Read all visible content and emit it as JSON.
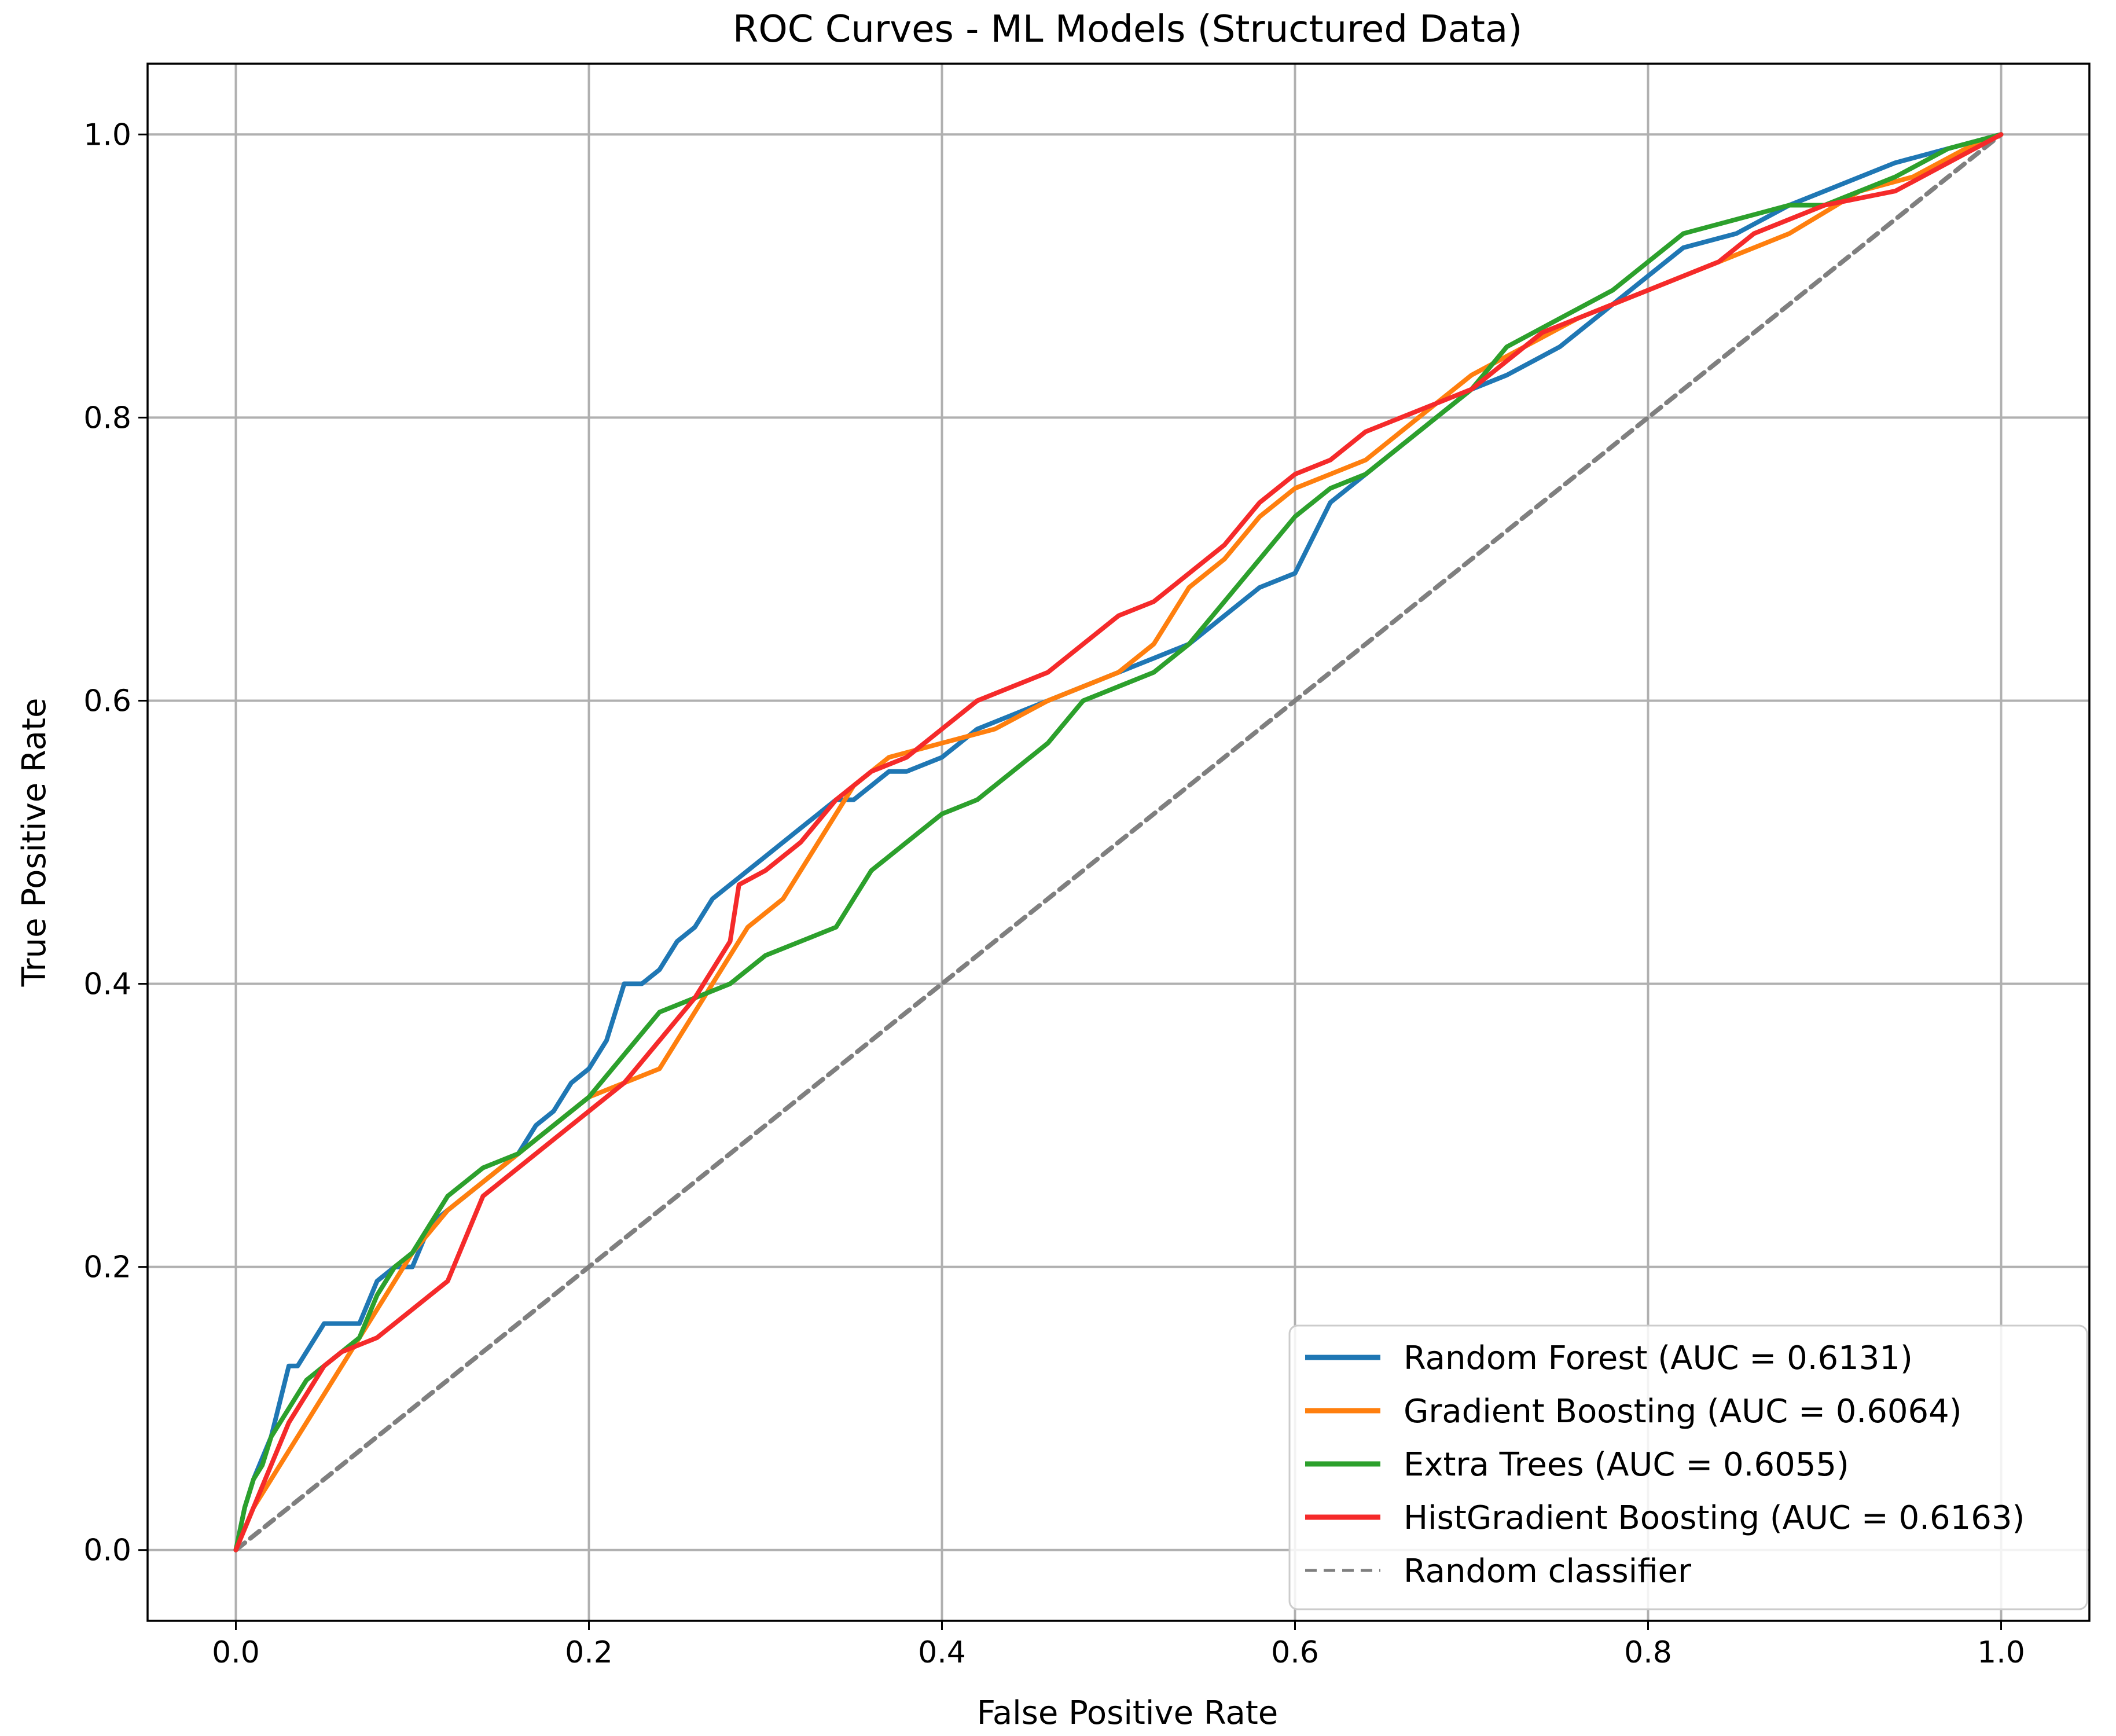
{
  "chart_data": {
    "type": "line",
    "title": "ROC Curves - ML Models (Structured Data)",
    "xlabel": "False Positive Rate",
    "ylabel": "True Positive Rate",
    "xlim": [
      -0.05,
      1.05
    ],
    "ylim": [
      -0.05,
      1.05
    ],
    "x_ticks": [
      0.0,
      0.2,
      0.4,
      0.6,
      0.8,
      1.0
    ],
    "y_ticks": [
      0.0,
      0.2,
      0.4,
      0.6,
      0.8,
      1.0
    ],
    "x_tick_labels": [
      "0.0",
      "0.2",
      "0.4",
      "0.6",
      "0.8",
      "1.0"
    ],
    "y_tick_labels": [
      "0.0",
      "0.2",
      "0.4",
      "0.6",
      "0.8",
      "1.0"
    ],
    "grid": true,
    "legend_position": "bottom-right",
    "series": [
      {
        "name": "Random Forest (AUC = 0.6131)",
        "color": "#1f77b4",
        "style": "solid",
        "x": [
          0.0,
          0.005,
          0.01,
          0.02,
          0.03,
          0.035,
          0.045,
          0.05,
          0.07,
          0.08,
          0.09,
          0.1,
          0.11,
          0.12,
          0.13,
          0.15,
          0.16,
          0.17,
          0.18,
          0.19,
          0.2,
          0.21,
          0.22,
          0.23,
          0.24,
          0.25,
          0.26,
          0.27,
          0.28,
          0.29,
          0.3,
          0.31,
          0.32,
          0.33,
          0.34,
          0.35,
          0.36,
          0.37,
          0.38,
          0.4,
          0.42,
          0.44,
          0.46,
          0.48,
          0.5,
          0.52,
          0.54,
          0.56,
          0.58,
          0.6,
          0.62,
          0.64,
          0.66,
          0.68,
          0.7,
          0.72,
          0.75,
          0.78,
          0.8,
          0.82,
          0.85,
          0.88,
          0.9,
          0.94,
          0.97,
          1.0
        ],
        "y": [
          0.0,
          0.03,
          0.05,
          0.08,
          0.13,
          0.13,
          0.15,
          0.16,
          0.16,
          0.19,
          0.2,
          0.2,
          0.23,
          0.24,
          0.25,
          0.27,
          0.28,
          0.3,
          0.31,
          0.33,
          0.34,
          0.36,
          0.4,
          0.4,
          0.41,
          0.43,
          0.44,
          0.46,
          0.47,
          0.48,
          0.49,
          0.5,
          0.51,
          0.52,
          0.53,
          0.53,
          0.54,
          0.55,
          0.55,
          0.56,
          0.58,
          0.59,
          0.6,
          0.61,
          0.62,
          0.63,
          0.64,
          0.66,
          0.68,
          0.69,
          0.74,
          0.76,
          0.78,
          0.8,
          0.82,
          0.83,
          0.85,
          0.88,
          0.9,
          0.92,
          0.93,
          0.95,
          0.96,
          0.98,
          0.99,
          1.0
        ]
      },
      {
        "name": "Gradient Boosting (AUC = 0.6064)",
        "color": "#ff7f0e",
        "style": "solid",
        "x": [
          0.0,
          0.01,
          0.02,
          0.03,
          0.04,
          0.05,
          0.06,
          0.07,
          0.08,
          0.09,
          0.1,
          0.12,
          0.14,
          0.16,
          0.18,
          0.2,
          0.22,
          0.24,
          0.25,
          0.26,
          0.27,
          0.28,
          0.29,
          0.3,
          0.31,
          0.32,
          0.33,
          0.34,
          0.35,
          0.37,
          0.4,
          0.43,
          0.46,
          0.48,
          0.5,
          0.52,
          0.53,
          0.54,
          0.56,
          0.58,
          0.6,
          0.62,
          0.64,
          0.66,
          0.68,
          0.7,
          0.73,
          0.76,
          0.8,
          0.84,
          0.88,
          0.92,
          0.95,
          0.98,
          1.0
        ],
        "y": [
          0.0,
          0.03,
          0.05,
          0.07,
          0.09,
          0.11,
          0.13,
          0.15,
          0.17,
          0.19,
          0.21,
          0.24,
          0.26,
          0.28,
          0.3,
          0.32,
          0.33,
          0.34,
          0.36,
          0.38,
          0.4,
          0.42,
          0.44,
          0.45,
          0.46,
          0.48,
          0.5,
          0.52,
          0.54,
          0.56,
          0.57,
          0.58,
          0.6,
          0.61,
          0.62,
          0.64,
          0.66,
          0.68,
          0.7,
          0.73,
          0.75,
          0.76,
          0.77,
          0.79,
          0.81,
          0.83,
          0.85,
          0.87,
          0.89,
          0.91,
          0.93,
          0.96,
          0.97,
          0.99,
          1.0
        ]
      },
      {
        "name": "Extra Trees (AUC = 0.6055)",
        "color": "#2ca02c",
        "style": "solid",
        "x": [
          0.0,
          0.005,
          0.01,
          0.015,
          0.02,
          0.03,
          0.04,
          0.05,
          0.06,
          0.07,
          0.08,
          0.09,
          0.1,
          0.11,
          0.12,
          0.14,
          0.16,
          0.18,
          0.2,
          0.22,
          0.24,
          0.26,
          0.28,
          0.3,
          0.32,
          0.34,
          0.35,
          0.36,
          0.38,
          0.4,
          0.42,
          0.44,
          0.46,
          0.48,
          0.5,
          0.52,
          0.54,
          0.56,
          0.58,
          0.6,
          0.62,
          0.64,
          0.66,
          0.68,
          0.7,
          0.72,
          0.75,
          0.78,
          0.8,
          0.82,
          0.85,
          0.88,
          0.9,
          0.94,
          0.97,
          1.0
        ],
        "y": [
          0.0,
          0.03,
          0.05,
          0.06,
          0.08,
          0.1,
          0.12,
          0.13,
          0.14,
          0.15,
          0.18,
          0.2,
          0.21,
          0.23,
          0.25,
          0.27,
          0.28,
          0.3,
          0.32,
          0.35,
          0.38,
          0.39,
          0.4,
          0.42,
          0.43,
          0.44,
          0.46,
          0.48,
          0.5,
          0.52,
          0.53,
          0.55,
          0.57,
          0.6,
          0.61,
          0.62,
          0.64,
          0.67,
          0.7,
          0.73,
          0.75,
          0.76,
          0.78,
          0.8,
          0.82,
          0.85,
          0.87,
          0.89,
          0.91,
          0.93,
          0.94,
          0.95,
          0.95,
          0.97,
          0.99,
          1.0
        ]
      },
      {
        "name": "HistGradient Boosting (AUC = 0.6163)",
        "color": "#f52a2a",
        "style": "solid",
        "x": [
          0.0,
          0.01,
          0.02,
          0.03,
          0.04,
          0.05,
          0.06,
          0.08,
          0.1,
          0.12,
          0.13,
          0.14,
          0.16,
          0.18,
          0.2,
          0.22,
          0.24,
          0.26,
          0.27,
          0.28,
          0.285,
          0.3,
          0.32,
          0.34,
          0.36,
          0.38,
          0.4,
          0.42,
          0.44,
          0.46,
          0.48,
          0.5,
          0.52,
          0.54,
          0.56,
          0.58,
          0.6,
          0.62,
          0.64,
          0.66,
          0.68,
          0.7,
          0.72,
          0.74,
          0.76,
          0.8,
          0.84,
          0.86,
          0.88,
          0.9,
          0.94,
          0.97,
          1.0
        ],
        "y": [
          0.0,
          0.03,
          0.06,
          0.09,
          0.11,
          0.13,
          0.14,
          0.15,
          0.17,
          0.19,
          0.22,
          0.25,
          0.27,
          0.29,
          0.31,
          0.33,
          0.36,
          0.39,
          0.41,
          0.43,
          0.47,
          0.48,
          0.5,
          0.53,
          0.55,
          0.56,
          0.58,
          0.6,
          0.61,
          0.62,
          0.64,
          0.66,
          0.67,
          0.69,
          0.71,
          0.74,
          0.76,
          0.77,
          0.79,
          0.8,
          0.81,
          0.82,
          0.84,
          0.86,
          0.87,
          0.89,
          0.91,
          0.93,
          0.94,
          0.95,
          0.96,
          0.98,
          1.0
        ]
      },
      {
        "name": "Random classifier",
        "color": "#7f7f7f",
        "style": "dashed",
        "x": [
          0.0,
          1.0
        ],
        "y": [
          0.0,
          1.0
        ]
      }
    ]
  }
}
